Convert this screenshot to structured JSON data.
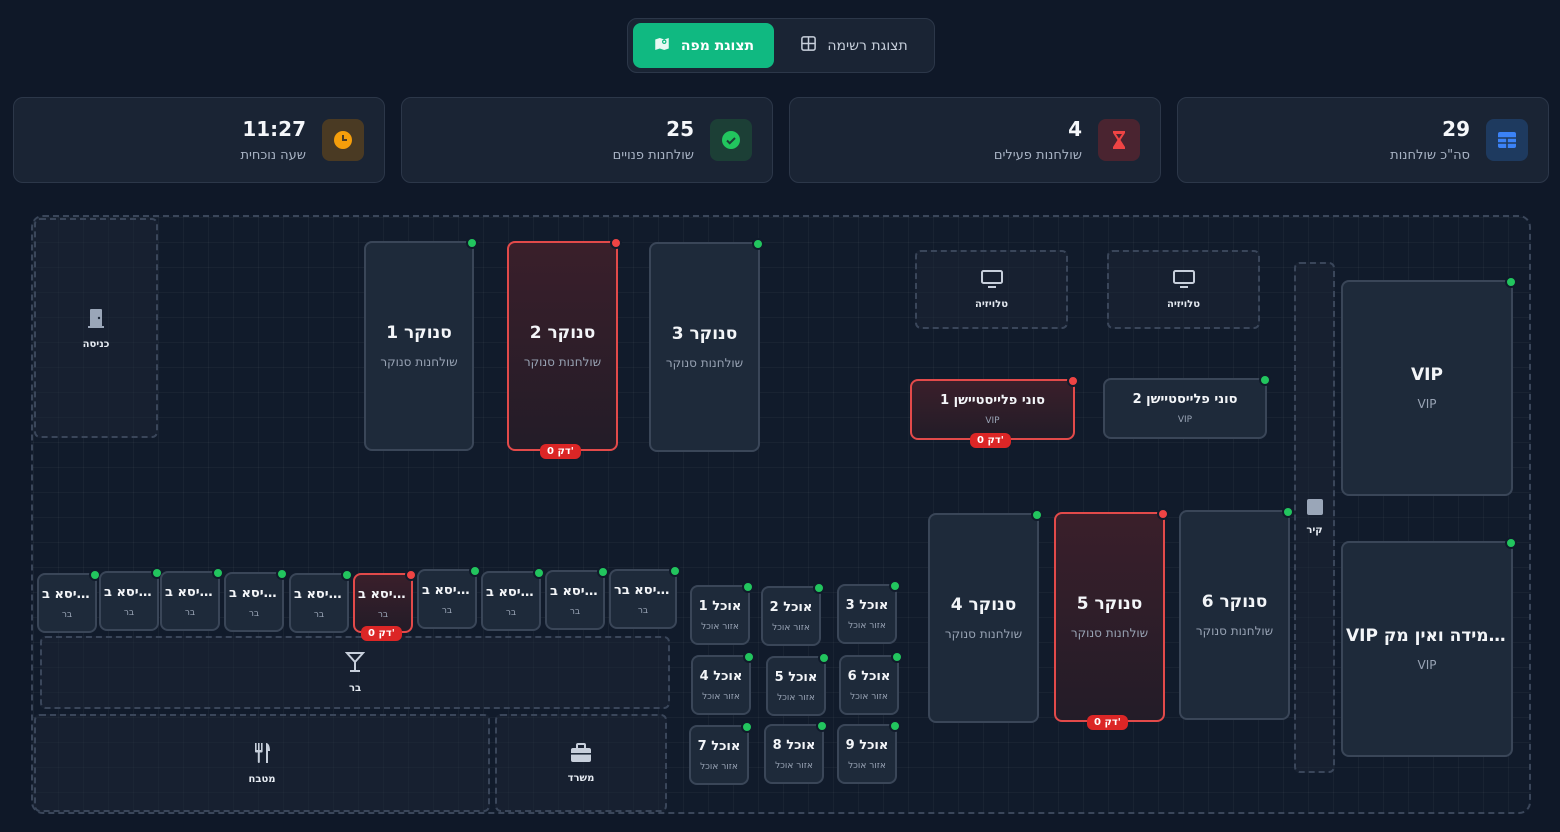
{
  "view_toggle": {
    "map_label": "תצוגת מפה",
    "list_label": "תצוגת רשימה"
  },
  "stats": [
    {
      "value": "29",
      "label": "סה\"כ שולחנות",
      "icon": "table-icon",
      "color": "#3b82f6"
    },
    {
      "value": "4",
      "label": "שולחנות פעילים",
      "icon": "hourglass-icon",
      "color": "#ef4444"
    },
    {
      "value": "25",
      "label": "שולחנות פנויים",
      "icon": "check-circle-icon",
      "color": "#22c55e"
    },
    {
      "value": "11:27",
      "label": "שעה נוכחית",
      "icon": "clock-icon",
      "color": "#f59e0b"
    }
  ],
  "zones": {
    "entrance": "כניסה",
    "tv1": "טלויזיה",
    "tv2": "טלויזיה",
    "wall": "קיר",
    "bar": "בר",
    "kitchen": "מטבח",
    "office": "משרד"
  },
  "timer_label": "0 דק'",
  "tables": {
    "snooker1": {
      "name": "סנוקר 1",
      "type": "שולחנות סנוקר",
      "status": "free"
    },
    "snooker2": {
      "name": "סנוקר 2",
      "type": "שולחנות סנוקר",
      "status": "active"
    },
    "snooker3": {
      "name": "סנוקר 3",
      "type": "שולחנות סנוקר",
      "status": "free"
    },
    "ps1": {
      "name": "סוני פלייסטיישן 1",
      "type": "VIP",
      "status": "active"
    },
    "ps2": {
      "name": "סוני פלייסטיישן 2",
      "type": "VIP",
      "status": "free"
    },
    "vip1": {
      "name": "VIP",
      "type": "VIP",
      "status": "free"
    },
    "vip2": {
      "name": "VIP במידה ואין מק...",
      "type": "VIP",
      "status": "free"
    },
    "snooker4": {
      "name": "סנוקר 4",
      "type": "שולחנות סנוקר",
      "status": "free"
    },
    "snooker5": {
      "name": "סנוקר 5",
      "type": "שולחנות סנוקר",
      "status": "active"
    },
    "snooker6": {
      "name": "סנוקר 6",
      "type": "שולחנות סנוקר",
      "status": "free"
    },
    "food": [
      {
        "name": "אוכל 1",
        "type": "אזור אוכל"
      },
      {
        "name": "אוכל 2",
        "type": "אזור אוכל"
      },
      {
        "name": "אוכל 3",
        "type": "אזור אוכל"
      },
      {
        "name": "אוכל 4",
        "type": "אזור אוכל"
      },
      {
        "name": "אוכל 5",
        "type": "אזור אוכל"
      },
      {
        "name": "אוכל 6",
        "type": "אזור אוכל"
      },
      {
        "name": "אוכל 7",
        "type": "אזור אוכל"
      },
      {
        "name": "אוכל 8",
        "type": "אזור אוכל"
      },
      {
        "name": "אוכל 9",
        "type": "אזור אוכל"
      }
    ],
    "bar_seats": [
      {
        "name": "כיסא ב...",
        "type": "בר",
        "status": "free"
      },
      {
        "name": "כיסא ב...",
        "type": "בר",
        "status": "free"
      },
      {
        "name": "כיסא ב...",
        "type": "בר",
        "status": "free"
      },
      {
        "name": "כיסא ב...",
        "type": "בר",
        "status": "free"
      },
      {
        "name": "כיסא ב...",
        "type": "בר",
        "status": "free"
      },
      {
        "name": "כיסא ב...",
        "type": "בר",
        "status": "active"
      },
      {
        "name": "כיסא ב...",
        "type": "בר",
        "status": "free"
      },
      {
        "name": "כיסא ב...",
        "type": "בר",
        "status": "free"
      },
      {
        "name": "כיסא ב...",
        "type": "בר",
        "status": "free"
      },
      {
        "name": "כיסא בר...",
        "type": "בר",
        "status": "free"
      }
    ]
  }
}
